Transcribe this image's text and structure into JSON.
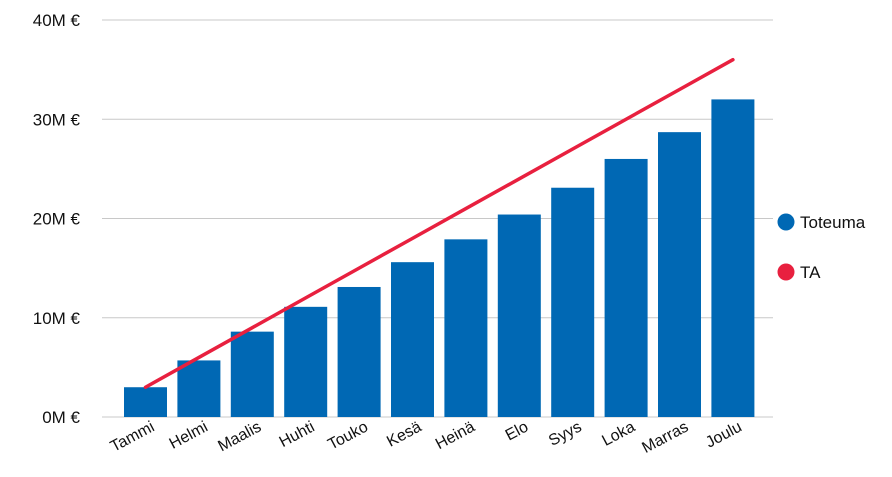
{
  "chart_data": {
    "type": "bar",
    "categories": [
      "Tammi",
      "Helmi",
      "Maalis",
      "Huhti",
      "Touko",
      "Kesä",
      "Heinä",
      "Elo",
      "Syys",
      "Loka",
      "Marras",
      "Joulu"
    ],
    "series": [
      {
        "name": "Toteuma",
        "type": "bar",
        "color": "#0068b4",
        "values": [
          3.0,
          5.7,
          8.6,
          11.1,
          13.1,
          15.6,
          17.9,
          20.4,
          23.1,
          26.0,
          28.7,
          32.0
        ]
      },
      {
        "name": "TA",
        "type": "line",
        "color": "#e8203f",
        "values": [
          3.0,
          6.0,
          9.0,
          12.0,
          15.0,
          18.0,
          21.0,
          24.0,
          27.0,
          30.0,
          33.0,
          36.0
        ]
      }
    ],
    "ylim": [
      0,
      40
    ],
    "yticks": [
      0,
      10,
      20,
      30,
      40
    ],
    "ytick_labels": [
      "0M €",
      "10M €",
      "20M €",
      "30M €",
      "40M €"
    ],
    "grid": true,
    "legend_position": "right"
  }
}
